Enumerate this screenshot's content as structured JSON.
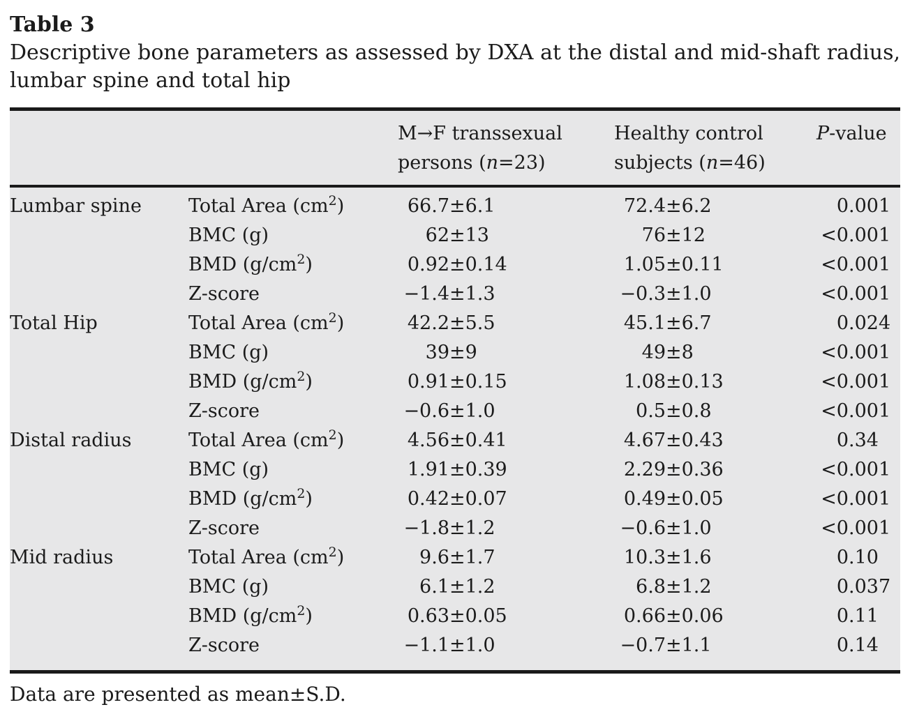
{
  "title": "Table 3",
  "caption": "Descriptive bone parameters as assessed by DXA at the distal and mid-shaft radius, lumbar spine and total hip",
  "footnote": "Data are presented as mean±S.D.",
  "colors": {
    "table_background": "#e7e7e8",
    "rule": "#1a1a1a",
    "text": "#1b1b1b"
  },
  "table": {
    "column_headers": {
      "region": "",
      "parameter": "",
      "mtf": "M→F transsexual\npersons (*n*=23)",
      "control": "Healthy control\nsubjects (*n*=46)",
      "p": "*P*-value"
    },
    "sections": [
      {
        "region": "Lumbar spine",
        "rows": [
          {
            "param": "Total Area (cm^2)",
            "mtf": "66.7±6.1",
            "control": "72.4±6.2",
            "p": "0.001"
          },
          {
            "param": "BMC (g)",
            "mtf": "62±13",
            "control": "76±12",
            "p": "<0.001"
          },
          {
            "param": "BMD (g/cm^2)",
            "mtf": "0.92±0.14",
            "control": "1.05±0.11",
            "p": "<0.001"
          },
          {
            "param": "Z-score",
            "mtf": "−1.4±1.3",
            "control": "−0.3±1.0",
            "p": "<0.001"
          }
        ]
      },
      {
        "region": "Total Hip",
        "rows": [
          {
            "param": "Total Area (cm^2)",
            "mtf": "42.2±5.5",
            "control": "45.1±6.7",
            "p": "0.024"
          },
          {
            "param": "BMC (g)",
            "mtf": "39±9",
            "control": "49±8",
            "p": "<0.001"
          },
          {
            "param": "BMD (g/cm^2)",
            "mtf": "0.91±0.15",
            "control": "1.08±0.13",
            "p": "<0.001"
          },
          {
            "param": "Z-score",
            "mtf": "−0.6±1.0",
            "control": "0.5±0.8",
            "p": "<0.001"
          }
        ]
      },
      {
        "region": "Distal radius",
        "rows": [
          {
            "param": "Total Area (cm^2)",
            "mtf": "4.56±0.41",
            "control": "4.67±0.43",
            "p": "0.34"
          },
          {
            "param": "BMC (g)",
            "mtf": "1.91±0.39",
            "control": "2.29±0.36",
            "p": "<0.001"
          },
          {
            "param": "BMD (g/cm^2)",
            "mtf": "0.42±0.07",
            "control": "0.49±0.05",
            "p": "<0.001"
          },
          {
            "param": "Z-score",
            "mtf": "−1.8±1.2",
            "control": "−0.6±1.0",
            "p": "<0.001"
          }
        ]
      },
      {
        "region": "Mid radius",
        "rows": [
          {
            "param": "Total Area (cm^2)",
            "mtf": "9.6±1.7",
            "control": "10.3±1.6",
            "p": "0.10"
          },
          {
            "param": "BMC (g)",
            "mtf": "6.1±1.2",
            "control": "6.8±1.2",
            "p": "0.037"
          },
          {
            "param": "BMD (g/cm^2)",
            "mtf": "0.63±0.05",
            "control": "0.66±0.06",
            "p": "0.11"
          },
          {
            "param": "Z-score",
            "mtf": "−1.1±1.0",
            "control": "−0.7±1.1",
            "p": "0.14"
          }
        ]
      }
    ]
  }
}
